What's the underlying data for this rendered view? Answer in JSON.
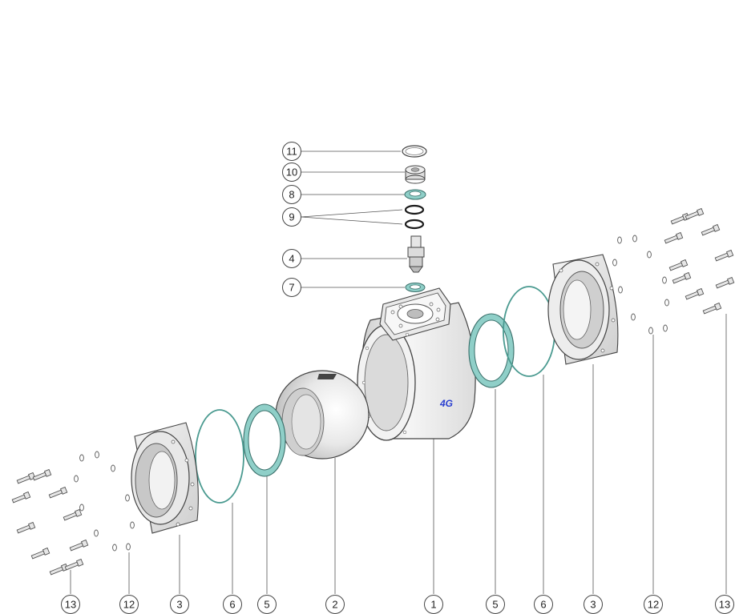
{
  "diagram": {
    "callouts_top": [
      "11",
      "10",
      "8",
      "9",
      "4",
      "7"
    ],
    "callouts_bottom": [
      "13",
      "12",
      "3",
      "6",
      "5",
      "2",
      "1",
      "5",
      "6",
      "3",
      "12",
      "13"
    ],
    "brand_logo": "4G",
    "colors": {
      "line": "#4a4a4a",
      "seat_ring": "#8fcfc8",
      "o_ring_dark": "#1a1a1a",
      "logo": "#2a3fd0",
      "metal_fill": "#efefef"
    }
  }
}
